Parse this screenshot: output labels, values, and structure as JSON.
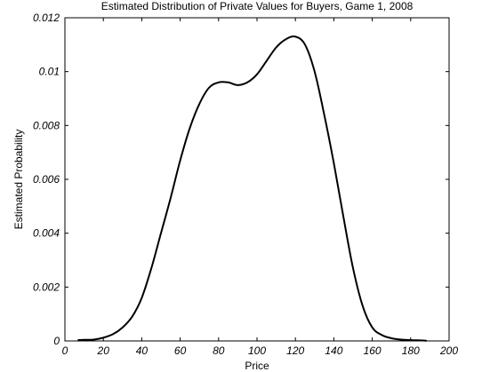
{
  "chart_data": {
    "type": "line",
    "title": "Estimated Distribution of Private Values for Buyers, Game 1, 2008",
    "xlabel": "Price",
    "ylabel": "Estimated Probability",
    "xlim": [
      0,
      200
    ],
    "ylim": [
      0,
      0.012
    ],
    "xticks": [
      0,
      20,
      40,
      60,
      80,
      100,
      120,
      140,
      160,
      180,
      200
    ],
    "yticks": [
      0,
      0.002,
      0.004,
      0.006,
      0.008,
      0.01,
      0.012
    ],
    "xtick_labels": [
      "0",
      "20",
      "40",
      "60",
      "80",
      "100",
      "120",
      "140",
      "160",
      "180",
      "200"
    ],
    "ytick_labels": [
      "0",
      "0.002",
      "0.004",
      "0.006",
      "0.008",
      "0.01",
      "0.012"
    ],
    "grid": false,
    "series": [
      {
        "color": "#000000",
        "x": [
          7,
          10,
          15,
          20,
          25,
          30,
          35,
          40,
          45,
          50,
          55,
          60,
          65,
          70,
          75,
          80,
          85,
          90,
          95,
          100,
          105,
          110,
          115,
          120,
          125,
          130,
          135,
          140,
          145,
          150,
          155,
          160,
          165,
          170,
          175,
          180,
          185,
          188
        ],
        "y": [
          3e-05,
          4e-05,
          5e-05,
          0.00012,
          0.00025,
          0.0005,
          0.0009,
          0.0016,
          0.0027,
          0.004,
          0.0053,
          0.0067,
          0.0079,
          0.0088,
          0.0094,
          0.0096,
          0.0096,
          0.0095,
          0.0096,
          0.0099,
          0.0104,
          0.0109,
          0.0112,
          0.0113,
          0.011,
          0.01,
          0.0084,
          0.0066,
          0.0046,
          0.0027,
          0.0013,
          0.0005,
          0.00022,
          0.0001,
          5e-05,
          3e-05,
          2e-05,
          1e-05
        ]
      }
    ]
  }
}
